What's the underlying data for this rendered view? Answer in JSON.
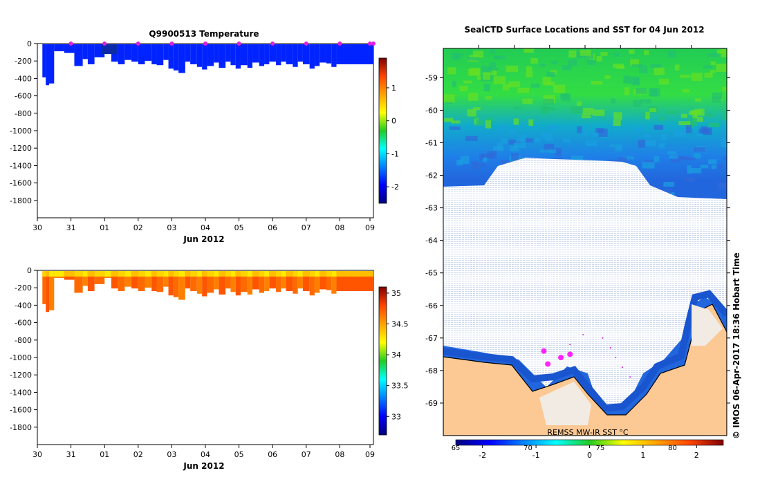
{
  "panels": {
    "temperature": {
      "title": "Q9900513  Temperature",
      "xlabel": "Jun 2012",
      "yticks": [
        0,
        -200,
        -400,
        -600,
        -800,
        -1000,
        -1200,
        -1400,
        -1600,
        -1800
      ],
      "xticks": [
        "30",
        "31",
        "01",
        "02",
        "03",
        "04",
        "05",
        "06",
        "07",
        "08",
        "09"
      ],
      "colorbar_ticks": [
        1,
        0,
        -1,
        -2
      ]
    },
    "salinity": {
      "xlabel": "Jun 2012",
      "yticks": [
        0,
        -200,
        -400,
        -600,
        -800,
        -1000,
        -1200,
        -1400,
        -1600,
        -1800
      ],
      "xticks": [
        "30",
        "31",
        "01",
        "02",
        "03",
        "04",
        "05",
        "06",
        "07",
        "08",
        "09"
      ],
      "colorbar_ticks": [
        35,
        34.5,
        34,
        33.5,
        33
      ]
    },
    "map": {
      "title": "SealCTD Surface Locations and SST for 04 Jun 2012",
      "yticks": [
        -59,
        -60,
        -61,
        -62,
        -63,
        -64,
        -65,
        -66,
        -67,
        -68,
        -69
      ],
      "lon_labels": [
        "65",
        "70",
        "75",
        "80"
      ],
      "colorbar_label": "REMSS MW-IR SST °C",
      "colorbar_ticks": [
        -2,
        -1,
        0,
        1,
        2
      ]
    }
  },
  "credit": "©  IMOS 06-Apr-2017 18:36 Hobart Time",
  "chart_data": [
    {
      "type": "heatmap",
      "title": "Q9900513  Temperature",
      "xlabel": "Jun 2012",
      "ylabel": "",
      "x_range_days": [
        0,
        10
      ],
      "ylim": [
        -2000,
        0
      ],
      "colorbar_range": [
        -2.5,
        1.9
      ],
      "profile_days": [
        0.15,
        0.25,
        0.35,
        0.5,
        0.8,
        1.1,
        1.35,
        1.5,
        1.7,
        2.0,
        2.2,
        2.4,
        2.6,
        2.8,
        3.0,
        3.2,
        3.4,
        3.55,
        3.75,
        3.9,
        4.05,
        4.2,
        4.4,
        4.55,
        4.75,
        4.9,
        5.05,
        5.25,
        5.4,
        5.6,
        5.75,
        5.9,
        6.05,
        6.25,
        6.4,
        6.6,
        6.75,
        6.9,
        7.1,
        7.25,
        7.4,
        7.6,
        7.75,
        7.9,
        8.1,
        8.25,
        8.4,
        8.6,
        8.75,
        8.9
      ],
      "profile_depths": [
        380,
        470,
        450,
        80,
        100,
        250,
        170,
        230,
        150,
        80,
        200,
        230,
        180,
        200,
        230,
        190,
        230,
        240,
        180,
        280,
        300,
        330,
        200,
        230,
        260,
        290,
        250,
        210,
        270,
        200,
        240,
        280,
        240,
        270,
        210,
        250,
        230,
        200,
        240,
        200,
        230,
        260,
        200,
        230,
        280,
        250,
        210,
        220,
        260,
        230
      ],
      "surface_value_deg_c": -1.8,
      "marker_days": [
        1,
        2,
        3,
        4,
        5,
        6,
        7,
        8,
        9,
        10,
        10.05
      ]
    },
    {
      "type": "heatmap",
      "title": "",
      "xlabel": "Jun 2012",
      "ylabel": "",
      "x_range_days": [
        0,
        10
      ],
      "ylim": [
        -2000,
        0
      ],
      "colorbar_range": [
        32.7,
        35.1
      ],
      "profile_days": [
        0.15,
        0.25,
        0.35,
        0.5,
        0.8,
        1.1,
        1.35,
        1.5,
        1.7,
        2.0,
        2.2,
        2.4,
        2.6,
        2.8,
        3.0,
        3.2,
        3.4,
        3.55,
        3.75,
        3.9,
        4.05,
        4.2,
        4.4,
        4.55,
        4.75,
        4.9,
        5.05,
        5.25,
        5.4,
        5.6,
        5.75,
        5.9,
        6.05,
        6.25,
        6.4,
        6.6,
        6.75,
        6.9,
        7.1,
        7.25,
        7.4,
        7.6,
        7.75,
        7.9,
        8.1,
        8.25,
        8.4,
        8.6,
        8.75,
        8.9
      ],
      "profile_depths": [
        380,
        470,
        450,
        80,
        100,
        250,
        170,
        230,
        150,
        80,
        200,
        230,
        180,
        200,
        230,
        190,
        230,
        240,
        180,
        280,
        300,
        330,
        200,
        230,
        260,
        290,
        250,
        210,
        270,
        200,
        240,
        280,
        240,
        270,
        210,
        250,
        230,
        200,
        240,
        200,
        230,
        260,
        200,
        230,
        280,
        250,
        210,
        220,
        260,
        230
      ],
      "profile_salinity": [
        34.55,
        34.6,
        34.5,
        34.5,
        34.6,
        34.55,
        34.5,
        34.6,
        34.55,
        34.5,
        34.6,
        34.55,
        34.5,
        34.6,
        34.55,
        34.5,
        34.6,
        34.55,
        34.5,
        34.6,
        34.55,
        34.5,
        34.6,
        34.55,
        34.5,
        34.6,
        34.55,
        34.5,
        34.6,
        34.55,
        34.5,
        34.6,
        34.55,
        34.5,
        34.6,
        34.55,
        34.5,
        34.6,
        34.55,
        34.5,
        34.6,
        34.55,
        34.5,
        34.6,
        34.55,
        34.5,
        34.6,
        34.55,
        34.5,
        34.6
      ]
    },
    {
      "type": "heatmap",
      "title": "SealCTD Surface Locations and SST for 04 Jun 2012",
      "xlabel": "",
      "ylabel": "",
      "lon_range": [
        62.8,
        84.5
      ],
      "lat_range": [
        -70.0,
        -58.1
      ],
      "colorbar_range": [
        -2.5,
        2.5
      ],
      "colorbar_label": "REMSS MW-IR SST °C",
      "seal_track": [
        [
          72.5,
          -67.2
        ],
        [
          73.5,
          -66.9
        ],
        [
          75.0,
          -67.0
        ],
        [
          75.6,
          -67.3
        ],
        [
          76.0,
          -67.6
        ],
        [
          76.5,
          -67.9
        ],
        [
          77.1,
          -68.2
        ]
      ],
      "seal_positions": [
        [
          70.5,
          -67.4
        ],
        [
          71.8,
          -67.6
        ],
        [
          72.5,
          -67.5
        ],
        [
          70.8,
          -67.8
        ]
      ],
      "ice_edge_lat_approx": -62.4
    }
  ]
}
